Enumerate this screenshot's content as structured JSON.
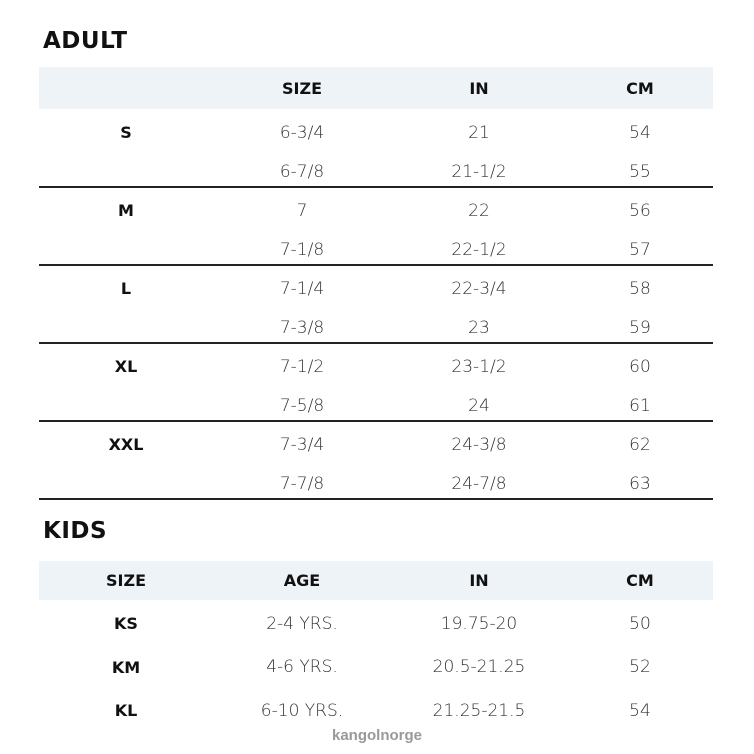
{
  "adult": {
    "title": "ADULT",
    "headers": [
      "",
      "SIZE",
      "IN",
      "CM"
    ],
    "rows": [
      [
        "S",
        "6-3/4",
        "21",
        "54"
      ],
      [
        "",
        "6-7/8",
        "21-1/2",
        "55"
      ],
      [
        "M",
        "7",
        "22",
        "56"
      ],
      [
        "",
        "7-1/8",
        "22-1/2",
        "57"
      ],
      [
        "L",
        "7-1/4",
        "22-3/4",
        "58"
      ],
      [
        "",
        "7-3/8",
        "23",
        "59"
      ],
      [
        "XL",
        "7-1/2",
        "23-1/2",
        "60"
      ],
      [
        "",
        "7-5/8",
        "24",
        "61"
      ],
      [
        "XXL",
        "7-3/4",
        "24-3/8",
        "62"
      ],
      [
        "",
        "7-7/8",
        "24-7/8",
        "63"
      ]
    ]
  },
  "kids": {
    "title": "KIDS",
    "headers": [
      "SIZE",
      "AGE",
      "IN",
      "CM"
    ],
    "rows": [
      [
        "KS",
        "2-4 YRS.",
        "19.75-20",
        "50"
      ],
      [
        "KM",
        "4-6 YRS.",
        "20.5-21.25",
        "52"
      ],
      [
        "KL",
        "6-10 YRS.",
        "21.25-21.5",
        "54"
      ]
    ]
  },
  "watermark": "kangolnorge",
  "colors": {
    "header_band": "#eef3f8",
    "divider": "#222222"
  }
}
